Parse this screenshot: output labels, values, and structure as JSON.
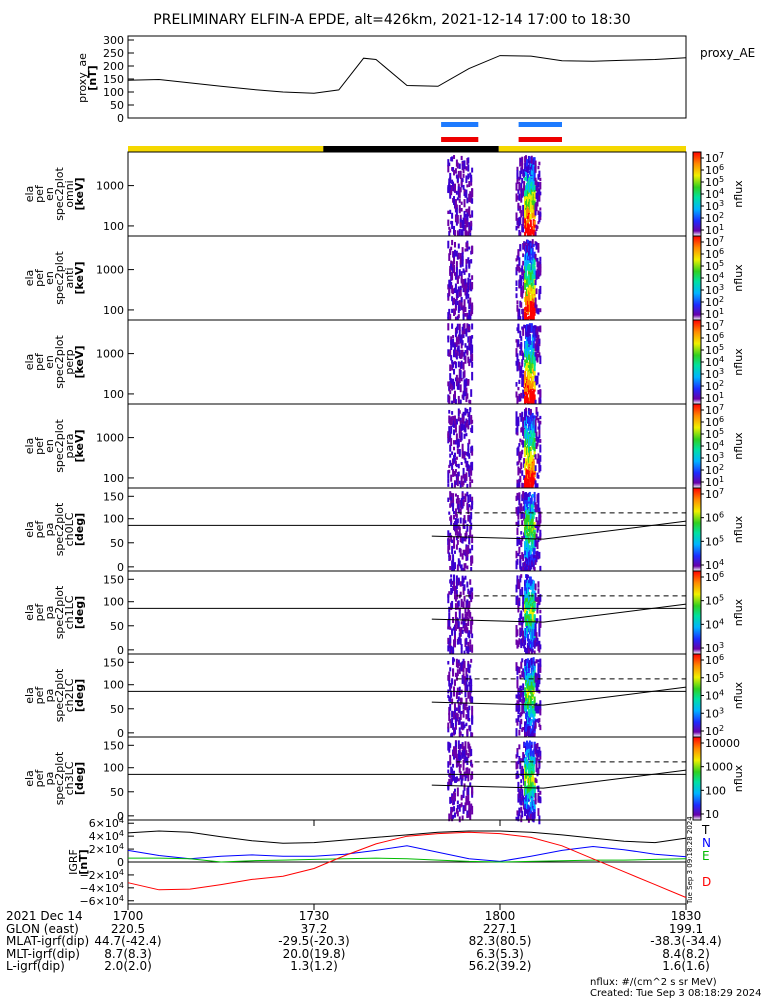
{
  "title": "PRELIMINARY ELFIN-A EPDE, alt=426km, 2021-12-14 17:00 to 18:30",
  "chart_data": [
    {
      "type": "line",
      "panel": "proxy_ae",
      "ylabel": [
        "proxy_ae",
        "[nT]"
      ],
      "legend": "proxy_AE",
      "yticks": [
        "300",
        "250",
        "200",
        "150",
        "100",
        "50",
        "0"
      ],
      "ylim": [
        0,
        300
      ],
      "x_minutes": [
        0,
        5,
        10,
        15,
        20,
        25,
        30,
        34,
        38,
        40,
        45,
        50,
        55,
        60,
        65,
        70,
        75,
        80,
        85,
        90
      ],
      "values": [
        145,
        148,
        135,
        122,
        110,
        100,
        95,
        108,
        230,
        225,
        125,
        122,
        190,
        240,
        238,
        220,
        218,
        222,
        225,
        232
      ]
    },
    {
      "type": "heatmap",
      "panel": "ela_pef_en_spec2plot_omni",
      "ylabel": [
        "ela",
        "pef",
        "en",
        "spec2plot",
        "omni",
        "[keV]"
      ],
      "yticks": [
        "1000",
        "100"
      ],
      "colorbar_label": "nflux",
      "colorbar_ticks": [
        "10^7",
        "10^6",
        "10^5",
        "10^4",
        "10^3",
        "10^2",
        "10^1"
      ]
    },
    {
      "type": "heatmap",
      "panel": "ela_pef_en_spec2plot_anti",
      "ylabel": [
        "ela",
        "pef",
        "en",
        "spec2plot",
        "anti",
        "[keV]"
      ],
      "yticks": [
        "1000",
        "100"
      ],
      "colorbar_label": "nflux",
      "colorbar_ticks": [
        "10^7",
        "10^6",
        "10^5",
        "10^4",
        "10^3",
        "10^2",
        "10^1"
      ]
    },
    {
      "type": "heatmap",
      "panel": "ela_pef_en_spec2plot_perp",
      "ylabel": [
        "ela",
        "pef",
        "en",
        "spec2plot",
        "perp",
        "[keV]"
      ],
      "yticks": [
        "1000",
        "100"
      ],
      "colorbar_label": "nflux",
      "colorbar_ticks": [
        "10^7",
        "10^6",
        "10^5",
        "10^4",
        "10^3",
        "10^2",
        "10^1"
      ]
    },
    {
      "type": "heatmap",
      "panel": "ela_pef_en_spec2plot_para",
      "ylabel": [
        "ela",
        "pef",
        "en",
        "spec2plot",
        "para",
        "[keV]"
      ],
      "yticks": [
        "1000",
        "100"
      ],
      "colorbar_label": "nflux",
      "colorbar_ticks": [
        "10^7",
        "10^6",
        "10^5",
        "10^4",
        "10^3",
        "10^2",
        "10^1"
      ]
    },
    {
      "type": "heatmap",
      "panel": "ela_pef_pa_spec2plot_ch0LC",
      "ylabel": [
        "ela",
        "pef",
        "pa",
        "spec2plot",
        "ch0LC",
        "[deg]"
      ],
      "yticks": [
        "150",
        "100",
        "50",
        "0"
      ],
      "colorbar_label": "nflux",
      "colorbar_ticks": [
        "10^7",
        "10^6",
        "10^5",
        "10^4"
      ]
    },
    {
      "type": "heatmap",
      "panel": "ela_pef_pa_spec2plot_ch1LC",
      "ylabel": [
        "ela",
        "pef",
        "pa",
        "spec2plot",
        "ch1LC",
        "[deg]"
      ],
      "yticks": [
        "150",
        "100",
        "50",
        "0"
      ],
      "colorbar_label": "nflux",
      "colorbar_ticks": [
        "10^6",
        "10^5",
        "10^4",
        "10^3"
      ]
    },
    {
      "type": "heatmap",
      "panel": "ela_pef_pa_spec2plot_ch2LC",
      "ylabel": [
        "ela",
        "pef",
        "pa",
        "spec2plot",
        "ch2LC",
        "[deg]"
      ],
      "yticks": [
        "150",
        "100",
        "50",
        "0"
      ],
      "colorbar_label": "nflux",
      "colorbar_ticks": [
        "10^6",
        "10^5",
        "10^4",
        "10^3",
        "10^2"
      ]
    },
    {
      "type": "heatmap",
      "panel": "ela_pef_pa_spec2plot_ch3LC",
      "ylabel": [
        "ela",
        "pef",
        "pa",
        "spec2plot",
        "ch3LC",
        "[deg]"
      ],
      "yticks": [
        "150",
        "100",
        "50",
        "0"
      ],
      "colorbar_label": "nflux",
      "colorbar_ticks": [
        "10000",
        "1000",
        "100",
        "10"
      ]
    },
    {
      "type": "line",
      "panel": "IGRF",
      "ylabel": [
        "IGRF",
        "[nT]"
      ],
      "yticks": [
        "6×10^4",
        "4×10^4",
        "2×10^4",
        "0",
        "−2×10^4",
        "−4×10^4",
        "−6×10^4"
      ],
      "ylim": [
        -65000,
        65000
      ],
      "legend": [
        "T",
        "N",
        "E",
        "D"
      ],
      "legend_colors": [
        "#000000",
        "#0000ff",
        "#00bb00",
        "#ff0000"
      ],
      "x_minutes": [
        0,
        5,
        10,
        15,
        20,
        25,
        30,
        35,
        40,
        45,
        50,
        55,
        60,
        65,
        70,
        75,
        80,
        85,
        90
      ],
      "series": [
        {
          "name": "T",
          "values": [
            45000,
            48000,
            46000,
            39000,
            33000,
            29000,
            30000,
            34000,
            38000,
            42000,
            46000,
            48000,
            48000,
            46000,
            42000,
            37000,
            32000,
            30000,
            37000
          ]
        },
        {
          "name": "N",
          "values": [
            18000,
            10000,
            5000,
            9000,
            11000,
            9000,
            9000,
            12000,
            18000,
            25000,
            15000,
            5000,
            1000,
            9000,
            18000,
            24000,
            19000,
            12000,
            8000
          ]
        },
        {
          "name": "E",
          "values": [
            6000,
            6000,
            5000,
            0,
            2000,
            3000,
            4000,
            5000,
            6000,
            5000,
            3000,
            1000,
            0,
            1000,
            2000,
            3000,
            3000,
            4000,
            5000
          ]
        },
        {
          "name": "D",
          "values": [
            -32000,
            -43000,
            -42000,
            -35000,
            -27000,
            -22000,
            -10000,
            10000,
            28000,
            40000,
            44000,
            46000,
            44000,
            38000,
            25000,
            5000,
            -15000,
            -35000,
            -55000
          ]
        }
      ],
      "side_text": "Tue Sep  3 09:18:28 2024"
    }
  ],
  "overlay": {
    "science_bars": [
      {
        "start_min": 50.5,
        "end_min": 56.5
      },
      {
        "start_min": 63,
        "end_min": 70
      }
    ]
  },
  "x_axis": {
    "tick_labels": [
      "1700",
      "1730",
      "1800",
      "1830"
    ],
    "tick_minutes": [
      0,
      30,
      60,
      90
    ]
  },
  "footer_rows": [
    {
      "label": "2021 Dec 14",
      "values": [
        "1700",
        "1730",
        "1800",
        "1830"
      ]
    },
    {
      "label": "GLON (east)",
      "values": [
        "220.5",
        "37.2",
        "227.1",
        "199.1"
      ]
    },
    {
      "label": "MLAT-igrf(dip)",
      "values": [
        "44.7(-42.4)",
        "-29.5(-20.3)",
        "82.3(80.5)",
        "-38.3(-34.4)"
      ]
    },
    {
      "label": "MLT-igrf(dip)",
      "values": [
        "8.7(8.3)",
        "20.0(19.8)",
        "6.3(5.3)",
        "8.4(8.2)"
      ]
    },
    {
      "label": "L-igrf(dip)",
      "values": [
        "2.0(2.0)",
        "1.3(1.2)",
        "56.2(39.2)",
        "1.6(1.6)"
      ]
    }
  ],
  "footnote_units": "nflux: #/(cm^2 s sr MeV)",
  "created": "Created: Tue Sep  3 08:18:29 2024"
}
